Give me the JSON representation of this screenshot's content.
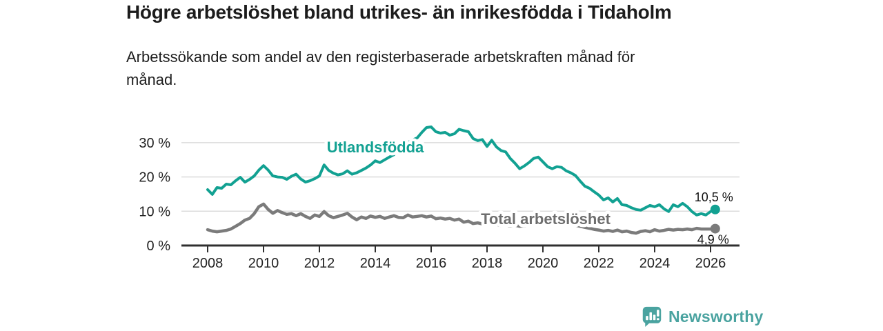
{
  "header": {
    "title": "Högre arbetslöshet bland utrikes- än inrikesfödda i Tidaholm",
    "subtitle": "Arbetssökande som andel av den registerbaserade arbetskraften månad för månad."
  },
  "branding": {
    "logo_text": "Newsworthy",
    "logo_icon": "bar-chart-speech-bubble-icon",
    "logo_color": "#4aa3a0"
  },
  "colors": {
    "accent_teal": "#12a192",
    "series_gray": "#7b7b7b",
    "gray_label": "#6e6e6e",
    "axis": "#2f2f2f",
    "grid": "#dcdcdc",
    "text_dark": "#1c1c1c"
  },
  "chart_data": {
    "type": "line",
    "title": "Högre arbetslöshet bland utrikes- än inrikesfödda i Tidaholm",
    "xlabel": "",
    "ylabel": "Arbetssökande som andel av den registerbaserade arbetskraften",
    "x_start": 2008,
    "points_per_year": 6,
    "xlim": [
      2007.05,
      2027.05
    ],
    "ylim": [
      0,
      37
    ],
    "grid": "horizontal",
    "legend_position": "inline-labels",
    "x_ticks": [
      2008,
      2010,
      2012,
      2014,
      2016,
      2018,
      2020,
      2022,
      2024,
      2026
    ],
    "y_ticks": [
      {
        "value": 0,
        "label": "0 %"
      },
      {
        "value": 10,
        "label": "10 %"
      },
      {
        "value": 20,
        "label": "20 %"
      },
      {
        "value": 30,
        "label": "30 %"
      }
    ],
    "axis_color": "#2f2f2f",
    "grid_color": "#dcdcdc",
    "series": [
      {
        "id": "utlandsfodda",
        "name": "Utlandsfödda",
        "color": "#12a192",
        "label_color": "#12a192",
        "line_width": 4,
        "label_at": {
          "x": 2014.0,
          "y": 27.2
        },
        "end_label": "10,5 %",
        "end_label_position": "above",
        "end_value": 10.5,
        "values": [
          16.3,
          14.9,
          16.9,
          16.7,
          17.9,
          17.7,
          18.9,
          19.9,
          18.5,
          19.3,
          20.3,
          22.0,
          23.3,
          22.0,
          20.3,
          20.0,
          19.9,
          19.3,
          20.2,
          20.8,
          19.4,
          18.5,
          18.9,
          19.5,
          20.3,
          23.5,
          21.9,
          21.1,
          20.6,
          20.9,
          21.8,
          20.8,
          21.2,
          21.9,
          22.6,
          23.5,
          24.7,
          24.2,
          25.0,
          25.8,
          26.5,
          29.0,
          30.4,
          30.0,
          30.8,
          31.4,
          33.0,
          34.4,
          34.6,
          33.2,
          32.8,
          33.0,
          32.2,
          32.6,
          33.9,
          33.5,
          33.2,
          31.2,
          30.6,
          30.9,
          28.9,
          30.7,
          28.8,
          27.7,
          27.3,
          25.4,
          24.0,
          22.4,
          23.2,
          24.2,
          25.4,
          25.8,
          24.4,
          23.0,
          22.4,
          23.0,
          22.8,
          21.8,
          21.2,
          20.4,
          18.8,
          17.3,
          16.7,
          15.7,
          14.7,
          13.3,
          13.9,
          12.7,
          13.7,
          11.9,
          11.7,
          11.0,
          10.5,
          10.3,
          11.0,
          11.7,
          11.3,
          11.9,
          10.7,
          9.9,
          11.9,
          11.3,
          12.3,
          11.3,
          9.9,
          8.9,
          9.3,
          8.9,
          9.9,
          10.5
        ]
      },
      {
        "id": "total",
        "name": "Total arbetslöshet",
        "color": "#7b7b7b",
        "label_color": "#6e6e6e",
        "line_width": 4.5,
        "label_at": {
          "x": 2020.1,
          "y": 6.2
        },
        "end_label": "4,9 %",
        "end_label_position": "below",
        "end_value": 4.9,
        "values": [
          4.6,
          4.2,
          4.0,
          4.2,
          4.4,
          4.8,
          5.6,
          6.4,
          7.4,
          7.9,
          9.3,
          11.3,
          12.1,
          10.5,
          9.4,
          10.2,
          9.6,
          9.1,
          9.3,
          8.7,
          9.3,
          8.5,
          7.9,
          8.9,
          8.5,
          9.9,
          8.7,
          8.1,
          8.5,
          8.9,
          9.4,
          8.3,
          7.5,
          8.3,
          7.9,
          8.6,
          8.2,
          8.5,
          7.9,
          8.3,
          8.7,
          8.2,
          8.1,
          8.9,
          8.3,
          8.5,
          8.7,
          8.3,
          8.6,
          7.8,
          8.0,
          7.7,
          7.9,
          7.4,
          7.7,
          6.8,
          7.1,
          6.4,
          6.6,
          6.3,
          6.5,
          6.0,
          6.2,
          5.8,
          6.0,
          5.7,
          5.9,
          5.6,
          5.8,
          6.0,
          6.2,
          6.0,
          6.2,
          6.7,
          7.1,
          6.9,
          6.7,
          6.5,
          6.3,
          5.9,
          5.6,
          5.3,
          5.0,
          4.7,
          4.5,
          4.2,
          4.4,
          4.1,
          4.5,
          4.0,
          4.2,
          3.8,
          3.6,
          4.1,
          4.3,
          4.0,
          4.6,
          4.2,
          4.4,
          4.7,
          4.5,
          4.7,
          4.6,
          4.8,
          4.6,
          5.0,
          4.8,
          4.8,
          4.8,
          4.9
        ]
      }
    ]
  }
}
